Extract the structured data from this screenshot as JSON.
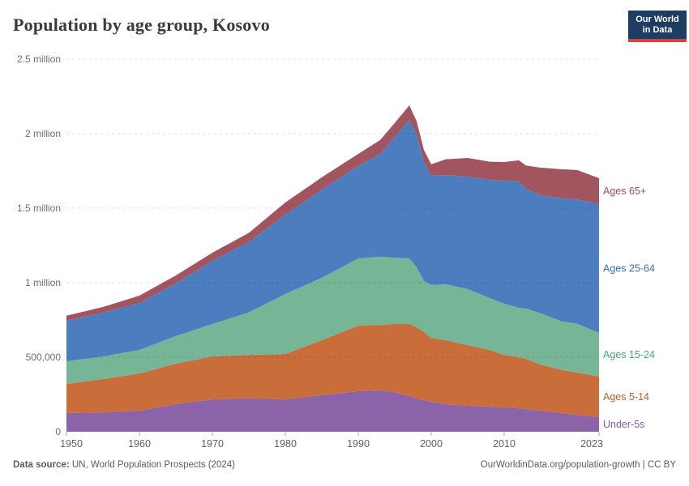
{
  "header": {
    "title": "Population by age group, Kosovo",
    "logo": {
      "line1": "Our World",
      "line2": "in Data"
    }
  },
  "footer": {
    "source_label": "Data source:",
    "source_text": " UN, World Population Prospects (2024)",
    "credit": "OurWorldinData.org/population-growth | CC BY"
  },
  "colors": {
    "background": "#ffffff",
    "grid": "rgba(0,0,0,0.13)",
    "tick_mark": "#a8a8a8",
    "title": "#3b3b3b",
    "logo_bg": "#1d3d63",
    "logo_red": "#dc3e3e"
  },
  "chart_data": {
    "type": "area",
    "stacked": true,
    "title": "Population by age group, Kosovo",
    "xlabel": "",
    "ylabel": "",
    "xlim": [
      1950,
      2023
    ],
    "ylim": [
      0,
      2500000
    ],
    "grid": "dashed-horizontal",
    "legend_position": "right-edge-labels",
    "x": [
      1950,
      1955,
      1960,
      1965,
      1970,
      1975,
      1980,
      1985,
      1990,
      1993,
      1995,
      1997,
      1998,
      1999,
      2000,
      2002,
      2005,
      2008,
      2010,
      2012,
      2013,
      2015,
      2018,
      2020,
      2023
    ],
    "series": [
      {
        "id": "under-5s",
        "label": "Under-5s",
        "color": "#8a63a8",
        "label_color": "#7e5ca8",
        "values": [
          125000,
          130000,
          141000,
          185000,
          217000,
          223000,
          217000,
          245000,
          272000,
          277000,
          266000,
          239000,
          223000,
          212000,
          201000,
          185000,
          174000,
          168000,
          163000,
          157000,
          152000,
          141000,
          125000,
          114000,
          98000
        ]
      },
      {
        "id": "ages-5-14",
        "label": "Ages 5-14",
        "color": "#c96d3b",
        "label_color": "#c45e2c",
        "values": [
          196000,
          223000,
          250000,
          272000,
          288000,
          293000,
          305000,
          369000,
          440000,
          440000,
          457000,
          484000,
          478000,
          457000,
          429000,
          429000,
          407000,
          381000,
          353000,
          343000,
          337000,
          310000,
          288000,
          283000,
          272000
        ]
      },
      {
        "id": "ages-15-24",
        "label": "Ages 15-24",
        "color": "#77b597",
        "label_color": "#4ba183",
        "values": [
          152000,
          152000,
          158000,
          185000,
          218000,
          285000,
          402000,
          419000,
          451000,
          457000,
          445000,
          440000,
          402000,
          343000,
          354000,
          375000,
          376000,
          348000,
          343000,
          332000,
          337000,
          343000,
          326000,
          328000,
          293000
        ]
      },
      {
        "id": "ages-25-64",
        "label": "Ages 25-64",
        "color": "#4c7dbf",
        "label_color": "#3d6fb3",
        "values": [
          272000,
          294000,
          315000,
          355000,
          424000,
          473000,
          533000,
          592000,
          620000,
          690000,
          810000,
          930000,
          892000,
          798000,
          734000,
          734000,
          755000,
          793000,
          826000,
          848000,
          805000,
          793000,
          826000,
          835000,
          864000
        ]
      },
      {
        "id": "ages-65-plus",
        "label": "Ages 65+",
        "color": "#a2555f",
        "label_color": "#9c4f57",
        "values": [
          33000,
          38000,
          49000,
          52000,
          54000,
          60000,
          81000,
          82000,
          81000,
          93000,
          93000,
          97000,
          87000,
          81000,
          76000,
          105000,
          125000,
          122000,
          125000,
          141000,
          155000,
          185000,
          196000,
          196000,
          174000
        ]
      }
    ],
    "yticks": [
      {
        "value": 0,
        "label": "0"
      },
      {
        "value": 500000,
        "label": "500,000"
      },
      {
        "value": 1000000,
        "label": "1 million"
      },
      {
        "value": 1500000,
        "label": "1.5 million"
      },
      {
        "value": 2000000,
        "label": "2 million"
      },
      {
        "value": 2500000,
        "label": "2.5 million"
      }
    ],
    "xticks": [
      {
        "value": 1950,
        "label": "1950"
      },
      {
        "value": 1960,
        "label": "1960"
      },
      {
        "value": 1970,
        "label": "1970"
      },
      {
        "value": 1980,
        "label": "1980"
      },
      {
        "value": 1990,
        "label": "1990"
      },
      {
        "value": 2000,
        "label": "2000"
      },
      {
        "value": 2010,
        "label": "2010"
      },
      {
        "value": 2023,
        "label": "2023"
      }
    ]
  }
}
